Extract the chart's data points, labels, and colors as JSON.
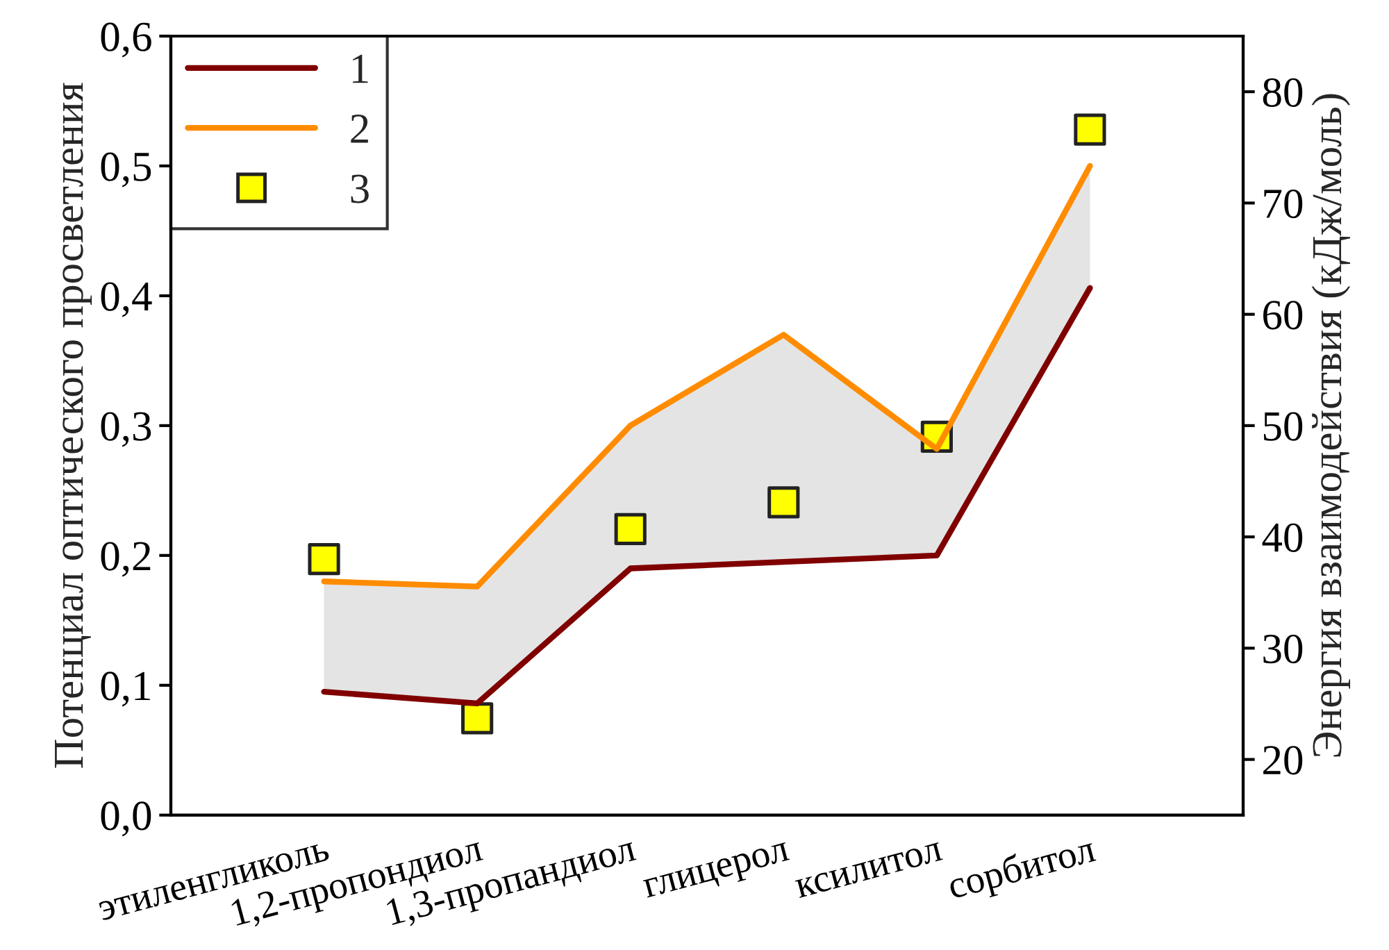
{
  "chart_data": {
    "type": "line",
    "ylabel": "Потенциал оптического просветления",
    "y2label": "Энергия взаимодействия (кДж/моль)",
    "categories": [
      "этиленгликоль",
      "1,2-пропондиол",
      "1,3-пропандиол",
      "глицерол",
      "ксилитол",
      "сорбитол"
    ],
    "series": [
      {
        "name": "1",
        "color": "#800000",
        "values": [
          0.095,
          0.086,
          0.19,
          0.195,
          0.2,
          0.406
        ]
      },
      {
        "name": "2",
        "color": "#ff8c00",
        "values": [
          0.18,
          0.176,
          0.3,
          0.37,
          0.282,
          0.5
        ],
        "lower": [
          0.095,
          0.086,
          0.19,
          0.195,
          0.2,
          0.406
        ],
        "upper": [
          0.18,
          0.176,
          0.3,
          0.37,
          0.282,
          0.5
        ]
      },
      {
        "name": "3",
        "type": "scatter",
        "axis": "y2",
        "color": "#ffff00",
        "marker": "square",
        "values": [
          38.0,
          23.7,
          40.7,
          43.1,
          49.0,
          76.6
        ]
      }
    ],
    "ylim": [
      0,
      0.6
    ],
    "yticks": [
      {
        "value": 0,
        "label": "0,0"
      },
      {
        "value": 0.1,
        "label": "0,1"
      },
      {
        "value": 0.2,
        "label": "0,2"
      },
      {
        "value": 0.3,
        "label": "0,3"
      },
      {
        "value": 0.4,
        "label": "0,4"
      },
      {
        "value": 0.5,
        "label": "0,5"
      },
      {
        "value": 0.6,
        "label": "0,6"
      }
    ],
    "y2lim": [
      15,
      85
    ],
    "y2ticks": [
      20,
      30,
      40,
      50,
      60,
      70,
      80
    ],
    "legend": "top left",
    "line_style": "solid"
  }
}
